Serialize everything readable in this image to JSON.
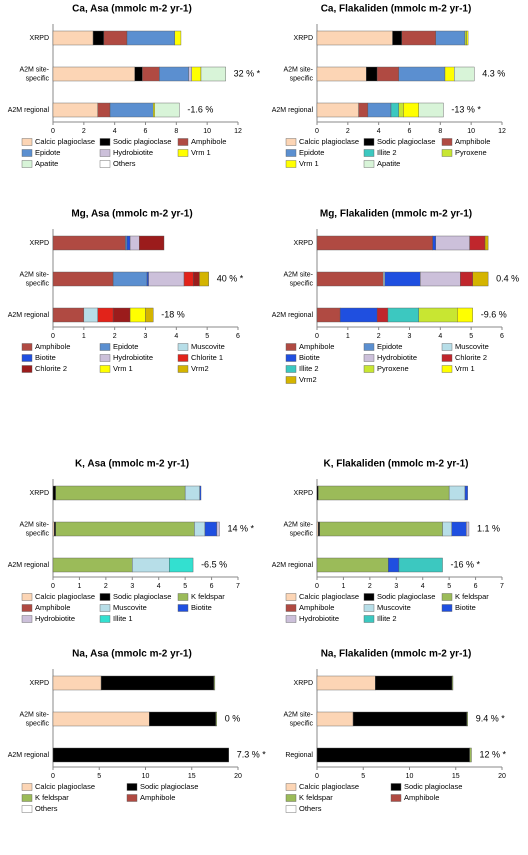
{
  "chart_data": [
    {
      "type": "bar",
      "orientation": "horizontal",
      "stacked": true,
      "title": "Ca, Asa (mmolc m-2 yr-1)",
      "categories": [
        [
          "XRPD"
        ],
        [
          "A2M site-",
          "specific"
        ],
        [
          "A2M regional"
        ]
      ],
      "annotations": [
        "",
        "32 % *",
        "-1.6 %"
      ],
      "xlim": [
        0,
        12
      ],
      "xticks": [
        0,
        2,
        4,
        6,
        8,
        10,
        12
      ],
      "series": [
        {
          "name": "Calcic plagioclase",
          "color": "#fcd5b5",
          "values": [
            2.6,
            5.3,
            2.9
          ]
        },
        {
          "name": "Sodic plagioclase",
          "color": "#000000",
          "values": [
            0.7,
            0.5,
            0
          ]
        },
        {
          "name": "Amphibole",
          "color": "#b04a42",
          "values": [
            1.5,
            1.1,
            0.8
          ]
        },
        {
          "name": "Epidote",
          "color": "#5b8fd0",
          "values": [
            3.1,
            1.9,
            2.8
          ]
        },
        {
          "name": "Hydrobiotite",
          "color": "#ccc0da",
          "values": [
            0,
            0.2,
            0
          ]
        },
        {
          "name": "Vrm 1",
          "color": "#ffff00",
          "values": [
            0.4,
            0.6,
            0.1
          ]
        },
        {
          "name": "Apatite",
          "color": "#d8f4d8",
          "values": [
            0,
            1.6,
            1.6
          ]
        },
        {
          "name": "Others",
          "color": "#ffffff",
          "values": [
            0,
            0,
            0
          ]
        }
      ]
    },
    {
      "type": "bar",
      "orientation": "horizontal",
      "stacked": true,
      "title": "Ca, Flakaliden (mmolc m-2 yr-1)",
      "categories": [
        [
          "XRPD"
        ],
        [
          "A2M site-",
          "specific"
        ],
        [
          "A2M regional"
        ]
      ],
      "annotations": [
        "",
        "4.3 %",
        "-13 % *"
      ],
      "xlim": [
        0,
        12
      ],
      "xticks": [
        0,
        2,
        4,
        6,
        8,
        10,
        12
      ],
      "series": [
        {
          "name": "Calcic plagioclase",
          "color": "#fcd5b5",
          "values": [
            4.9,
            3.2,
            2.7
          ]
        },
        {
          "name": "Sodic plagioclase",
          "color": "#000000",
          "values": [
            0.6,
            0.7,
            0
          ]
        },
        {
          "name": "Amphibole",
          "color": "#b04a42",
          "values": [
            2.2,
            1.4,
            0.6
          ]
        },
        {
          "name": "Epidote",
          "color": "#5b8fd0",
          "values": [
            1.9,
            3.0,
            1.5
          ]
        },
        {
          "name": "Illite 2",
          "color": "#3cc8c0",
          "values": [
            0,
            0,
            0.5
          ]
        },
        {
          "name": "Pyroxene",
          "color": "#c8e632",
          "values": [
            0.1,
            0,
            0.3
          ]
        },
        {
          "name": "Vrm 1",
          "color": "#ffff00",
          "values": [
            0.1,
            0.6,
            1.0
          ]
        },
        {
          "name": "Apatite",
          "color": "#d8f4d8",
          "values": [
            0,
            1.3,
            1.6
          ]
        }
      ]
    },
    {
      "type": "bar",
      "orientation": "horizontal",
      "stacked": true,
      "title": "Mg, Asa (mmolc m-2 yr-1)",
      "categories": [
        [
          "XRPD"
        ],
        [
          "A2M site-",
          "specific"
        ],
        [
          "A2M regional"
        ]
      ],
      "annotations": [
        "",
        "40 % *",
        "-18 %"
      ],
      "xlim": [
        0,
        6
      ],
      "xticks": [
        0,
        1,
        2,
        3,
        4,
        5,
        6
      ],
      "series": [
        {
          "name": "Amphibole",
          "color": "#b04a42",
          "values": [
            2.35,
            1.95,
            1.0
          ]
        },
        {
          "name": "Epidote",
          "color": "#5b8fd0",
          "values": [
            0.05,
            1.1,
            0
          ]
        },
        {
          "name": "Muscovite",
          "color": "#b7dee8",
          "values": [
            0,
            0,
            0.45
          ]
        },
        {
          "name": "Biotite",
          "color": "#1f4fe0",
          "values": [
            0.1,
            0.05,
            0
          ]
        },
        {
          "name": "Hydrobiotite",
          "color": "#ccc0da",
          "values": [
            0.3,
            1.15,
            0
          ]
        },
        {
          "name": "Chlorite 1",
          "color": "#e2231a",
          "values": [
            0,
            0.3,
            0.5
          ]
        },
        {
          "name": "Chlorite 2",
          "color": "#9b1c1c",
          "values": [
            0.8,
            0.2,
            0.55
          ]
        },
        {
          "name": "Vrm 1",
          "color": "#ffff00",
          "values": [
            0,
            0,
            0.5
          ]
        },
        {
          "name": "Vrm2",
          "color": "#d4b400",
          "values": [
            0,
            0.3,
            0.25
          ]
        }
      ]
    },
    {
      "type": "bar",
      "orientation": "horizontal",
      "stacked": true,
      "title": "Mg, Flakaliden (mmolc m-2 yr-1)",
      "categories": [
        [
          "XRPD"
        ],
        [
          "A2M site-",
          "specific"
        ],
        [
          "A2M regional"
        ]
      ],
      "annotations": [
        "",
        "0.4 %",
        "-9.6 %"
      ],
      "xlim": [
        0,
        6
      ],
      "xticks": [
        0,
        1,
        2,
        3,
        4,
        5,
        6
      ],
      "series": [
        {
          "name": "Amphibole",
          "color": "#b04a42",
          "values": [
            3.75,
            2.15,
            0.75
          ]
        },
        {
          "name": "Epidote",
          "color": "#5b8fd0",
          "values": [
            0,
            0,
            0
          ]
        },
        {
          "name": "Muscovite",
          "color": "#b7dee8",
          "values": [
            0,
            0.05,
            0
          ]
        },
        {
          "name": "Biotite",
          "color": "#1f4fe0",
          "values": [
            0.1,
            1.15,
            1.2
          ]
        },
        {
          "name": "Hydrobiotite",
          "color": "#ccc0da",
          "values": [
            1.1,
            1.3,
            0
          ]
        },
        {
          "name": "Chlorite 2",
          "color": "#c0262c",
          "values": [
            0.5,
            0.4,
            0.35
          ]
        },
        {
          "name": "Illite 2",
          "color": "#3cc8c0",
          "values": [
            0,
            0,
            1.0
          ]
        },
        {
          "name": "Pyroxene",
          "color": "#c8e632",
          "values": [
            0,
            0,
            1.25
          ]
        },
        {
          "name": "Vrm 1",
          "color": "#ffff00",
          "values": [
            0,
            0,
            0.5
          ]
        },
        {
          "name": "Vrm2",
          "color": "#d4b400",
          "values": [
            0.1,
            0.5,
            0
          ]
        }
      ]
    },
    {
      "type": "bar",
      "orientation": "horizontal",
      "stacked": true,
      "title": "K, Asa (mmolc m-2 yr-1)",
      "categories": [
        [
          "XRPD"
        ],
        [
          "A2M site-",
          "specific"
        ],
        [
          "A2M regional"
        ]
      ],
      "annotations": [
        "",
        "14 % *",
        "-6.5 %"
      ],
      "xlim": [
        0,
        7
      ],
      "xticks": [
        0,
        1,
        2,
        3,
        4,
        5,
        6,
        7
      ],
      "series": [
        {
          "name": "Calcic plagioclase",
          "color": "#fcd5b5",
          "values": [
            0,
            0.05,
            0
          ]
        },
        {
          "name": "Sodic plagioclase",
          "color": "#000000",
          "values": [
            0.1,
            0.05,
            0
          ]
        },
        {
          "name": "K feldspar",
          "color": "#9bbb59",
          "values": [
            4.9,
            5.25,
            3.0
          ]
        },
        {
          "name": "Amphibole",
          "color": "#b04a42",
          "values": [
            0,
            0,
            0
          ]
        },
        {
          "name": "Muscovite",
          "color": "#b7dee8",
          "values": [
            0.55,
            0.4,
            1.4
          ]
        },
        {
          "name": "Biotite",
          "color": "#1f4fe0",
          "values": [
            0.05,
            0.45,
            0
          ]
        },
        {
          "name": "Hydrobiotite",
          "color": "#ccc0da",
          "values": [
            0,
            0.1,
            0
          ]
        },
        {
          "name": "Illite 1",
          "color": "#33e0d0",
          "values": [
            0,
            0,
            0.9
          ]
        }
      ]
    },
    {
      "type": "bar",
      "orientation": "horizontal",
      "stacked": true,
      "title": "K, Flakaliden (mmolc m-2 yr-1)",
      "categories": [
        [
          "XRPD"
        ],
        [
          "A2M site-",
          "specific"
        ],
        [
          "A2M regional"
        ]
      ],
      "annotations": [
        "",
        "1.1 %",
        "-16 % *"
      ],
      "xlim": [
        0,
        7
      ],
      "xticks": [
        0,
        1,
        2,
        3,
        4,
        5,
        6,
        7
      ],
      "series": [
        {
          "name": "Calcic plagioclase",
          "color": "#fcd5b5",
          "values": [
            0,
            0.05,
            0
          ]
        },
        {
          "name": "Sodic plagioclase",
          "color": "#000000",
          "values": [
            0.05,
            0.05,
            0
          ]
        },
        {
          "name": "K feldspar",
          "color": "#9bbb59",
          "values": [
            4.95,
            4.65,
            2.7
          ]
        },
        {
          "name": "Amphibole",
          "color": "#b04a42",
          "values": [
            0,
            0,
            0
          ]
        },
        {
          "name": "Muscovite",
          "color": "#b7dee8",
          "values": [
            0.6,
            0.35,
            0
          ]
        },
        {
          "name": "Biotite",
          "color": "#1f4fe0",
          "values": [
            0.1,
            0.55,
            0.4
          ]
        },
        {
          "name": "Hydrobiotite",
          "color": "#ccc0da",
          "values": [
            0,
            0.1,
            0
          ]
        },
        {
          "name": "Illite 2",
          "color": "#3cc8c0",
          "values": [
            0,
            0,
            1.65
          ]
        }
      ]
    },
    {
      "type": "bar",
      "orientation": "horizontal",
      "stacked": true,
      "title": "Na, Asa (mmolc m-2 yr-1)",
      "categories": [
        [
          "XRPD"
        ],
        [
          "A2M site-",
          "specific"
        ],
        [
          "A2M regional"
        ]
      ],
      "annotations": [
        "",
        "0 %",
        "7.3 % *"
      ],
      "xlim": [
        0,
        20
      ],
      "xticks": [
        0,
        5,
        10,
        15,
        20
      ],
      "series": [
        {
          "name": "Calcic plagioclase",
          "color": "#fcd5b5",
          "values": [
            5.2,
            10.4,
            0
          ]
        },
        {
          "name": "Sodic plagioclase",
          "color": "#000000",
          "values": [
            12.2,
            7.2,
            19.0
          ]
        },
        {
          "name": "K feldspar",
          "color": "#9bbb59",
          "values": [
            0.1,
            0.1,
            0
          ]
        },
        {
          "name": "Amphibole",
          "color": "#b04a42",
          "values": [
            0,
            0,
            0
          ]
        },
        {
          "name": "Others",
          "color": "#ffffff",
          "values": [
            0,
            0,
            0
          ]
        }
      ]
    },
    {
      "type": "bar",
      "orientation": "horizontal",
      "stacked": true,
      "title": "Na, Flakaliden (mmolc m-2 yr-1)",
      "categories": [
        [
          "XRPD"
        ],
        [
          "A2M site-",
          "specific"
        ],
        [
          "Regional"
        ]
      ],
      "annotations": [
        "",
        "9.4 % *",
        "12 % *"
      ],
      "xlim": [
        0,
        20
      ],
      "xticks": [
        0,
        5,
        10,
        15,
        20
      ],
      "series": [
        {
          "name": "Calcic plagioclase",
          "color": "#fcd5b5",
          "values": [
            6.3,
            3.9,
            0
          ]
        },
        {
          "name": "Sodic plagioclase",
          "color": "#000000",
          "values": [
            8.3,
            12.3,
            16.5
          ]
        },
        {
          "name": "K feldspar",
          "color": "#9bbb59",
          "values": [
            0.1,
            0.1,
            0.2
          ]
        },
        {
          "name": "Amphibole",
          "color": "#b04a42",
          "values": [
            0,
            0,
            0
          ]
        },
        {
          "name": "Others",
          "color": "#ffffff",
          "values": [
            0,
            0,
            0
          ]
        }
      ]
    }
  ]
}
